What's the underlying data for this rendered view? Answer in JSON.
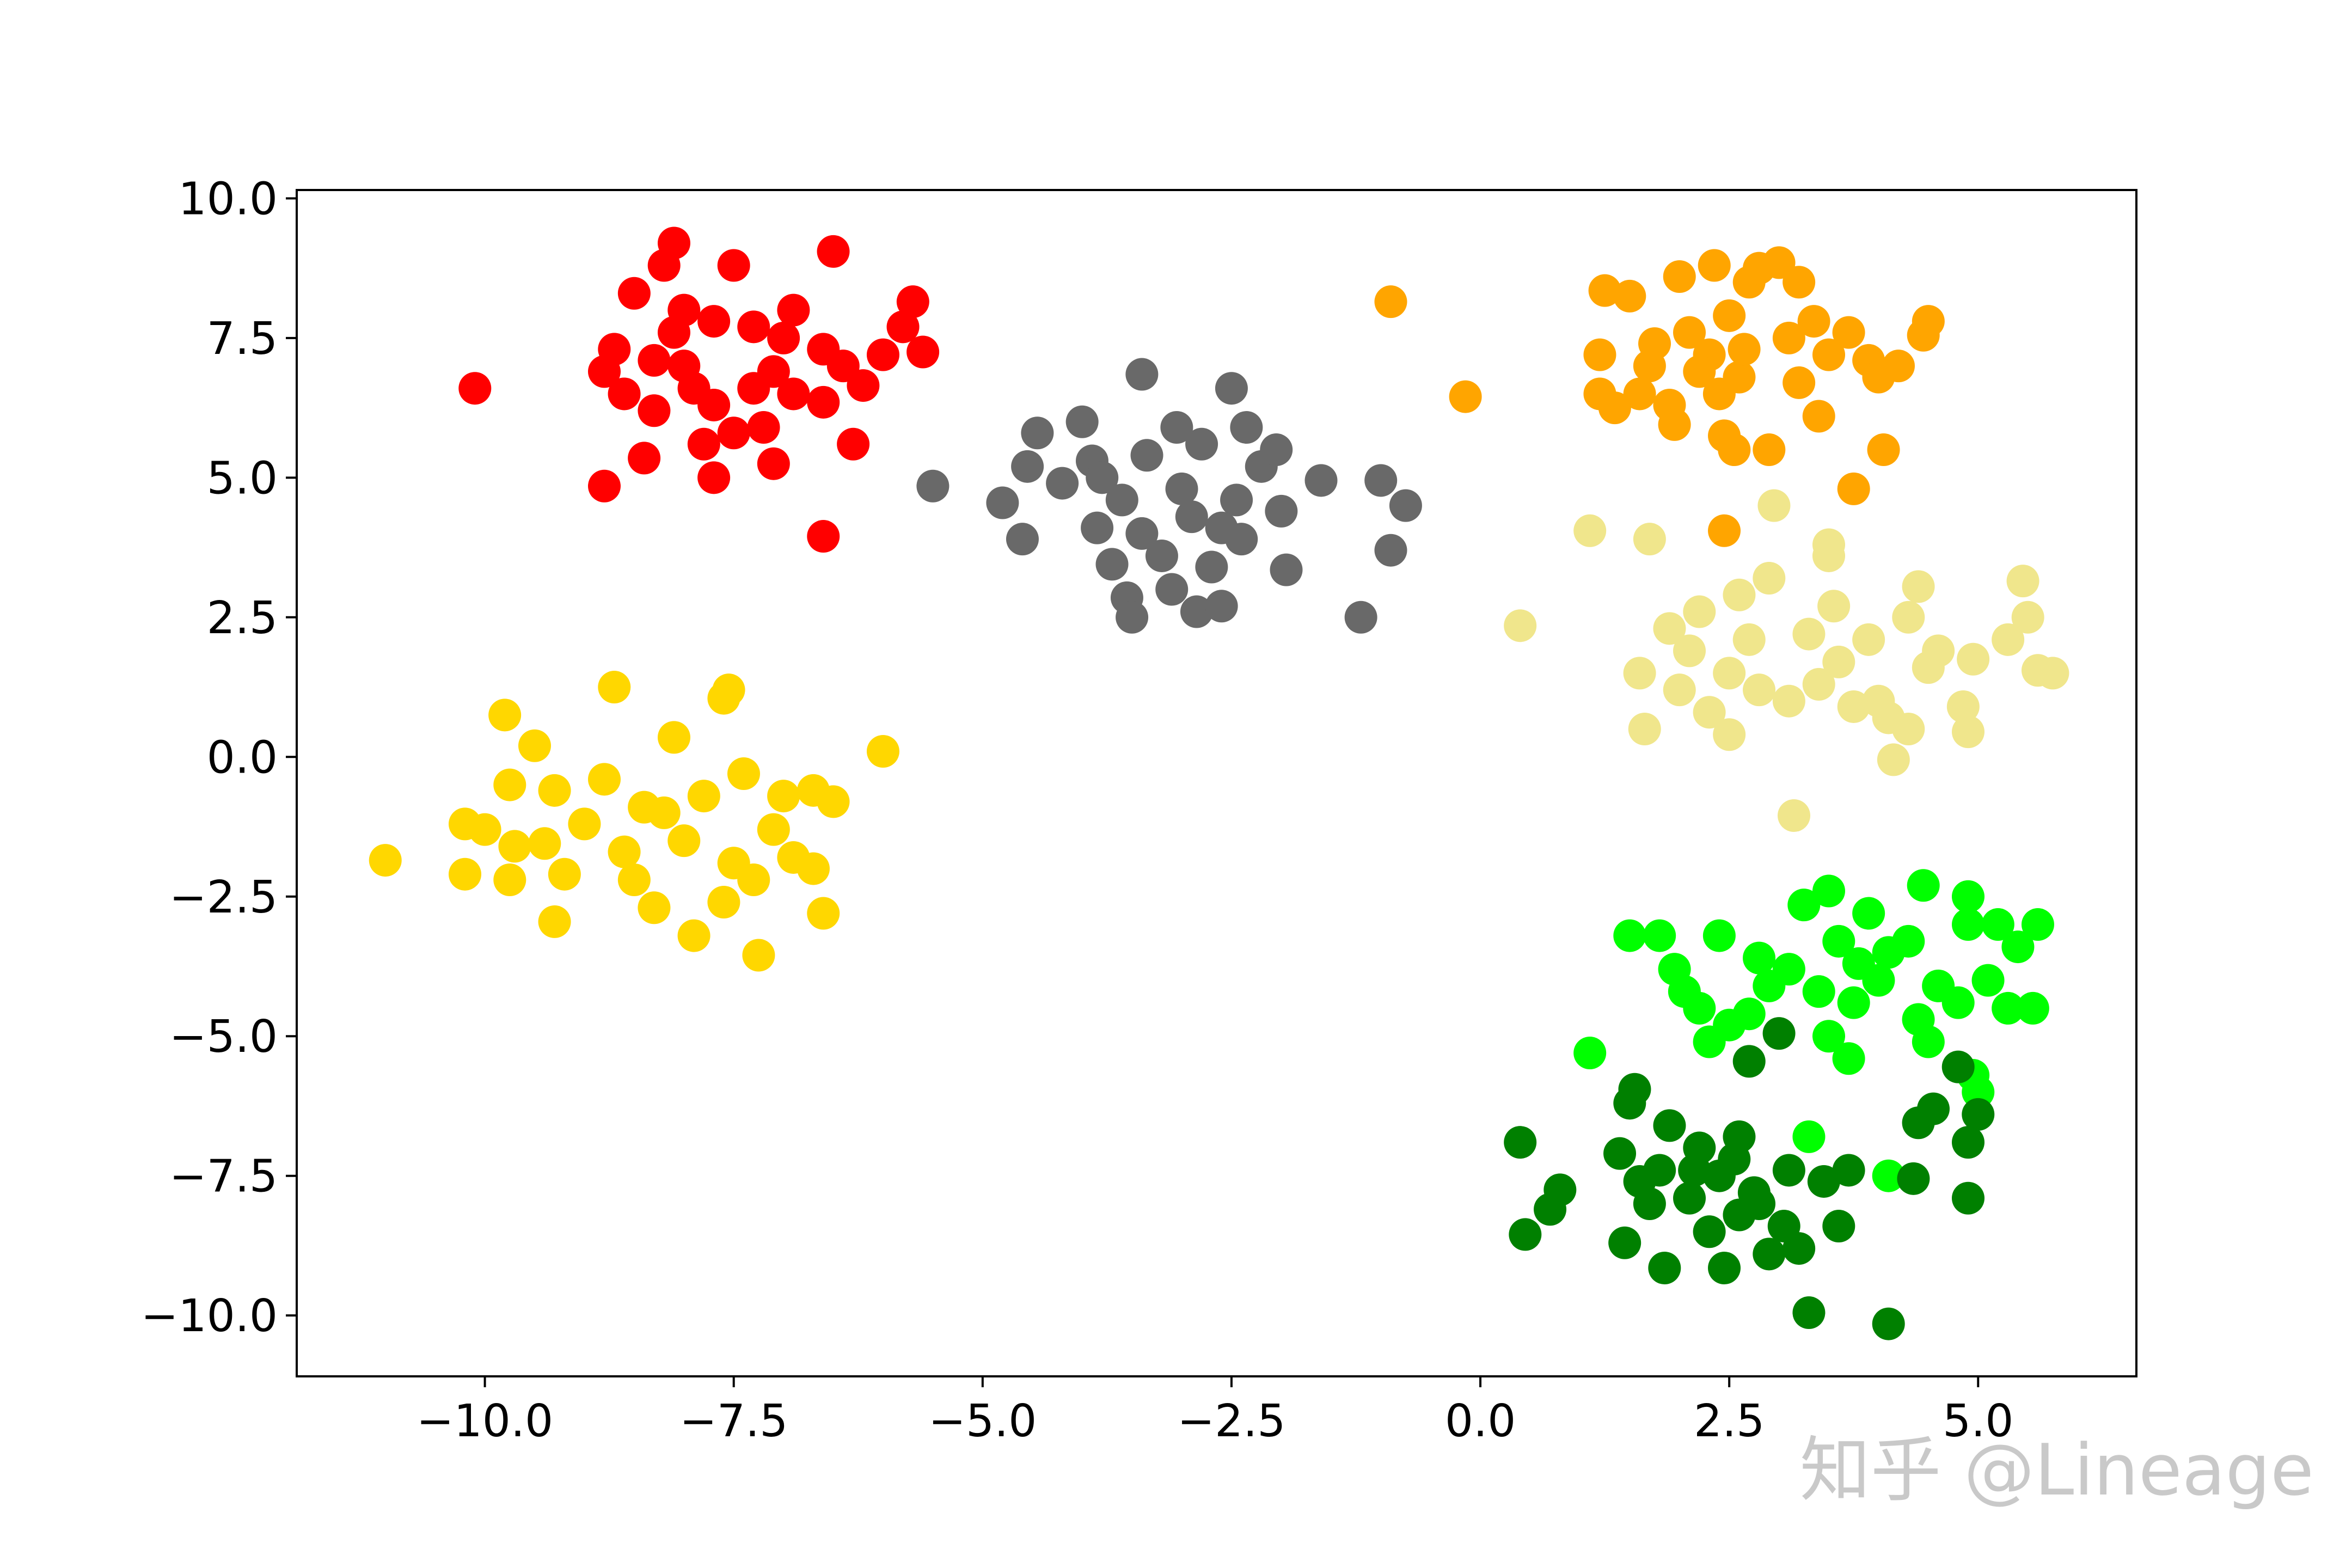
{
  "chart_data": {
    "type": "scatter",
    "watermark": "知乎 @Lineage",
    "xlim": [
      -11.89,
      6.59
    ],
    "ylim": [
      -11.09,
      10.15
    ],
    "xticks": [
      {
        "value": -10,
        "label": "−10.0"
      },
      {
        "value": -7.5,
        "label": "−7.5"
      },
      {
        "value": -5,
        "label": "−5.0"
      },
      {
        "value": -2.5,
        "label": "−2.5"
      },
      {
        "value": 0,
        "label": "0.0"
      },
      2.5,
      {
        "value": 5,
        "label": "5.0"
      }
    ],
    "yticks": [
      {
        "value": -10,
        "label": "−10.0"
      },
      {
        "value": -7.5,
        "label": "−7.5"
      },
      {
        "value": -5,
        "label": "−5.0"
      },
      {
        "value": -2.5,
        "label": "−2.5"
      },
      {
        "value": 0,
        "label": "0.0"
      },
      2.5,
      {
        "value": 5,
        "label": "5.0"
      },
      7.5,
      {
        "value": 10,
        "label": "10.0"
      }
    ],
    "series": [
      {
        "color": "#ff0000",
        "x": [
          -10.1,
          -8.8,
          -8.4,
          -8.1,
          -8.2,
          -8.5,
          -7.5,
          -6.5,
          -5.7,
          -5.8,
          -5.6,
          -6.2,
          -6.3,
          -6.6,
          -6.6,
          -6.6,
          -6.9,
          -7.0,
          -7.1,
          -7.2,
          -7.3,
          -7.5,
          -7.7,
          -7.7,
          -7.8,
          -7.9,
          -8.0,
          -8.1,
          -8.3,
          -8.3,
          -8.6,
          -8.8,
          -8.7,
          -7.7,
          -7.3,
          -6.9,
          -6.4,
          -6.0,
          -8.0,
          -7.1
        ],
        "values": [
          6.6,
          4.85,
          5.35,
          9.2,
          8.8,
          8.3,
          8.8,
          9.05,
          8.15,
          7.7,
          7.25,
          6.65,
          5.6,
          3.95,
          6.35,
          7.3,
          8.0,
          7.5,
          5.25,
          5.9,
          6.6,
          5.8,
          6.3,
          5.0,
          5.6,
          6.6,
          7.0,
          7.6,
          7.1,
          6.2,
          6.5,
          6.9,
          7.3,
          7.8,
          7.7,
          6.5,
          7.0,
          7.2,
          8.0,
          6.9
        ]
      },
      {
        "color": "#696969",
        "x": [
          -5.5,
          -4.8,
          -4.6,
          -4.55,
          -4.45,
          -4.2,
          -4.0,
          -3.9,
          -3.85,
          -3.7,
          -3.6,
          -3.55,
          -3.5,
          -3.4,
          -3.35,
          -3.2,
          -3.1,
          -3.05,
          -2.9,
          -2.85,
          -2.8,
          -2.7,
          -2.6,
          -2.5,
          -2.45,
          -2.4,
          -2.35,
          -2.2,
          -2.05,
          -2.0,
          -1.95,
          -1.6,
          -1.2,
          -1.0,
          -0.9,
          -0.75,
          -3.4,
          -3.0,
          -2.6,
          -3.8
        ],
        "values": [
          4.85,
          4.55,
          3.9,
          5.2,
          5.8,
          4.9,
          6.0,
          5.3,
          4.1,
          3.45,
          4.6,
          2.85,
          2.5,
          6.85,
          5.4,
          3.6,
          3.0,
          5.9,
          4.3,
          2.6,
          5.6,
          3.4,
          2.7,
          6.6,
          4.6,
          3.9,
          5.9,
          5.2,
          5.5,
          4.4,
          3.35,
          4.95,
          2.5,
          4.95,
          3.7,
          4.5,
          4.0,
          4.8,
          4.1,
          5.0
        ]
      },
      {
        "color": "#ffd700",
        "x": [
          -11.0,
          -10.2,
          -10.0,
          -10.2,
          -9.8,
          -9.75,
          -9.7,
          -9.75,
          -9.5,
          -9.4,
          -9.3,
          -9.3,
          -9.2,
          -9.0,
          -8.8,
          -8.7,
          -8.6,
          -8.5,
          -8.4,
          -8.3,
          -8.1,
          -8.0,
          -7.9,
          -7.8,
          -7.6,
          -7.6,
          -7.55,
          -7.5,
          -7.4,
          -7.3,
          -7.25,
          -7.1,
          -7.0,
          -6.9,
          -6.7,
          -6.7,
          -6.6,
          -6.5,
          -6.0,
          -8.2
        ],
        "values": [
          -1.85,
          -1.2,
          -1.3,
          -2.1,
          0.75,
          -0.5,
          -1.6,
          -2.2,
          0.2,
          -1.55,
          -0.6,
          -2.95,
          -2.1,
          -1.2,
          -0.4,
          1.25,
          -1.7,
          -2.2,
          -0.9,
          -2.7,
          0.35,
          -1.5,
          -3.2,
          -0.7,
          -2.6,
          1.05,
          1.2,
          -1.9,
          -0.3,
          -2.2,
          -3.55,
          -1.3,
          -0.7,
          -1.8,
          -2.0,
          -0.6,
          -2.8,
          -0.8,
          0.1,
          -1.0
        ]
      },
      {
        "color": "#ffa500",
        "x": [
          -0.9,
          -0.15,
          1.2,
          1.2,
          1.35,
          1.6,
          1.25,
          1.5,
          1.7,
          1.75,
          1.9,
          1.95,
          2.0,
          2.1,
          2.3,
          2.35,
          2.4,
          2.45,
          2.5,
          2.55,
          2.6,
          2.65,
          2.7,
          2.8,
          2.9,
          3.0,
          3.1,
          3.2,
          3.2,
          3.4,
          3.5,
          3.7,
          3.75,
          3.9,
          4.0,
          4.05,
          4.2,
          4.45,
          4.5,
          2.45,
          3.35,
          2.2
        ],
        "values": [
          8.15,
          6.45,
          7.2,
          6.5,
          6.25,
          6.5,
          8.35,
          8.25,
          7.0,
          7.4,
          6.3,
          5.95,
          8.6,
          7.6,
          7.2,
          8.8,
          6.5,
          5.75,
          7.9,
          5.5,
          6.8,
          7.3,
          8.5,
          8.75,
          5.5,
          8.85,
          7.5,
          8.5,
          6.7,
          6.1,
          7.2,
          7.6,
          4.8,
          7.1,
          6.8,
          5.5,
          7.0,
          7.55,
          7.8,
          4.05,
          7.8,
          6.9
        ]
      },
      {
        "color": "#f0e68c",
        "x": [
          0.4,
          1.1,
          1.7,
          1.6,
          1.65,
          1.9,
          2.0,
          2.1,
          2.2,
          2.3,
          2.5,
          2.5,
          2.6,
          2.7,
          2.8,
          2.9,
          2.95,
          3.1,
          3.15,
          3.3,
          3.4,
          3.5,
          3.55,
          3.6,
          3.75,
          3.9,
          4.0,
          4.1,
          4.15,
          4.3,
          4.4,
          4.5,
          4.6,
          4.85,
          4.9,
          4.95,
          5.3,
          5.45,
          5.5,
          5.6,
          5.75,
          4.3,
          3.5
        ],
        "values": [
          2.35,
          4.05,
          3.9,
          1.5,
          0.5,
          2.3,
          1.2,
          1.9,
          2.6,
          0.8,
          0.4,
          1.5,
          2.9,
          2.1,
          1.2,
          3.2,
          4.5,
          1.0,
          -1.05,
          2.2,
          1.3,
          3.6,
          2.7,
          1.7,
          0.9,
          2.1,
          1.0,
          0.7,
          -0.05,
          2.5,
          3.05,
          1.6,
          1.9,
          0.9,
          0.45,
          1.75,
          2.1,
          3.15,
          2.5,
          1.55,
          1.5,
          0.5,
          3.8
        ]
      },
      {
        "color": "#00ff00",
        "x": [
          1.1,
          1.5,
          1.8,
          1.95,
          2.05,
          2.2,
          2.3,
          2.4,
          2.5,
          2.7,
          2.8,
          2.9,
          3.1,
          3.25,
          3.3,
          3.5,
          3.5,
          3.6,
          3.7,
          3.75,
          3.8,
          3.9,
          4.0,
          4.1,
          4.3,
          4.4,
          4.45,
          4.5,
          4.6,
          4.8,
          4.9,
          4.9,
          4.95,
          5.0,
          5.1,
          5.2,
          5.3,
          5.4,
          5.55,
          5.6,
          4.1,
          3.4
        ],
        "values": [
          -5.3,
          -3.2,
          -3.2,
          -3.8,
          -4.2,
          -4.5,
          -5.1,
          -3.2,
          -4.8,
          -4.6,
          -3.6,
          -4.1,
          -3.8,
          -2.65,
          -6.8,
          -2.4,
          -5.0,
          -3.3,
          -5.4,
          -4.4,
          -3.7,
          -2.8,
          -4.0,
          -7.5,
          -3.3,
          -4.7,
          -2.3,
          -5.1,
          -4.1,
          -4.4,
          -3.0,
          -2.5,
          -5.7,
          -6.0,
          -4.0,
          -3.0,
          -4.5,
          -3.4,
          -4.5,
          -3.0,
          -3.5,
          -4.2
        ]
      },
      {
        "color": "#008000",
        "x": [
          0.4,
          0.45,
          0.7,
          0.8,
          1.4,
          1.45,
          1.5,
          1.55,
          1.6,
          1.7,
          1.8,
          1.85,
          1.9,
          2.1,
          2.2,
          2.3,
          2.4,
          2.45,
          2.55,
          2.6,
          2.7,
          2.75,
          2.8,
          2.9,
          3.0,
          3.05,
          3.1,
          3.2,
          3.3,
          3.45,
          3.6,
          3.7,
          4.1,
          4.35,
          4.4,
          4.55,
          4.8,
          4.9,
          4.9,
          5.0,
          2.15,
          2.6
        ],
        "values": [
          -6.9,
          -8.55,
          -8.1,
          -7.75,
          -7.1,
          -8.7,
          -6.2,
          -5.95,
          -7.6,
          -8.0,
          -7.4,
          -9.15,
          -6.6,
          -7.9,
          -7.0,
          -8.5,
          -7.5,
          -9.15,
          -7.2,
          -8.2,
          -5.45,
          -7.8,
          -8.0,
          -8.9,
          -4.95,
          -8.4,
          -7.4,
          -8.8,
          -9.95,
          -7.6,
          -8.4,
          -7.4,
          -10.15,
          -7.55,
          -6.55,
          -6.3,
          -5.55,
          -6.9,
          -7.9,
          -6.4,
          -7.4,
          -6.8
        ]
      }
    ]
  }
}
